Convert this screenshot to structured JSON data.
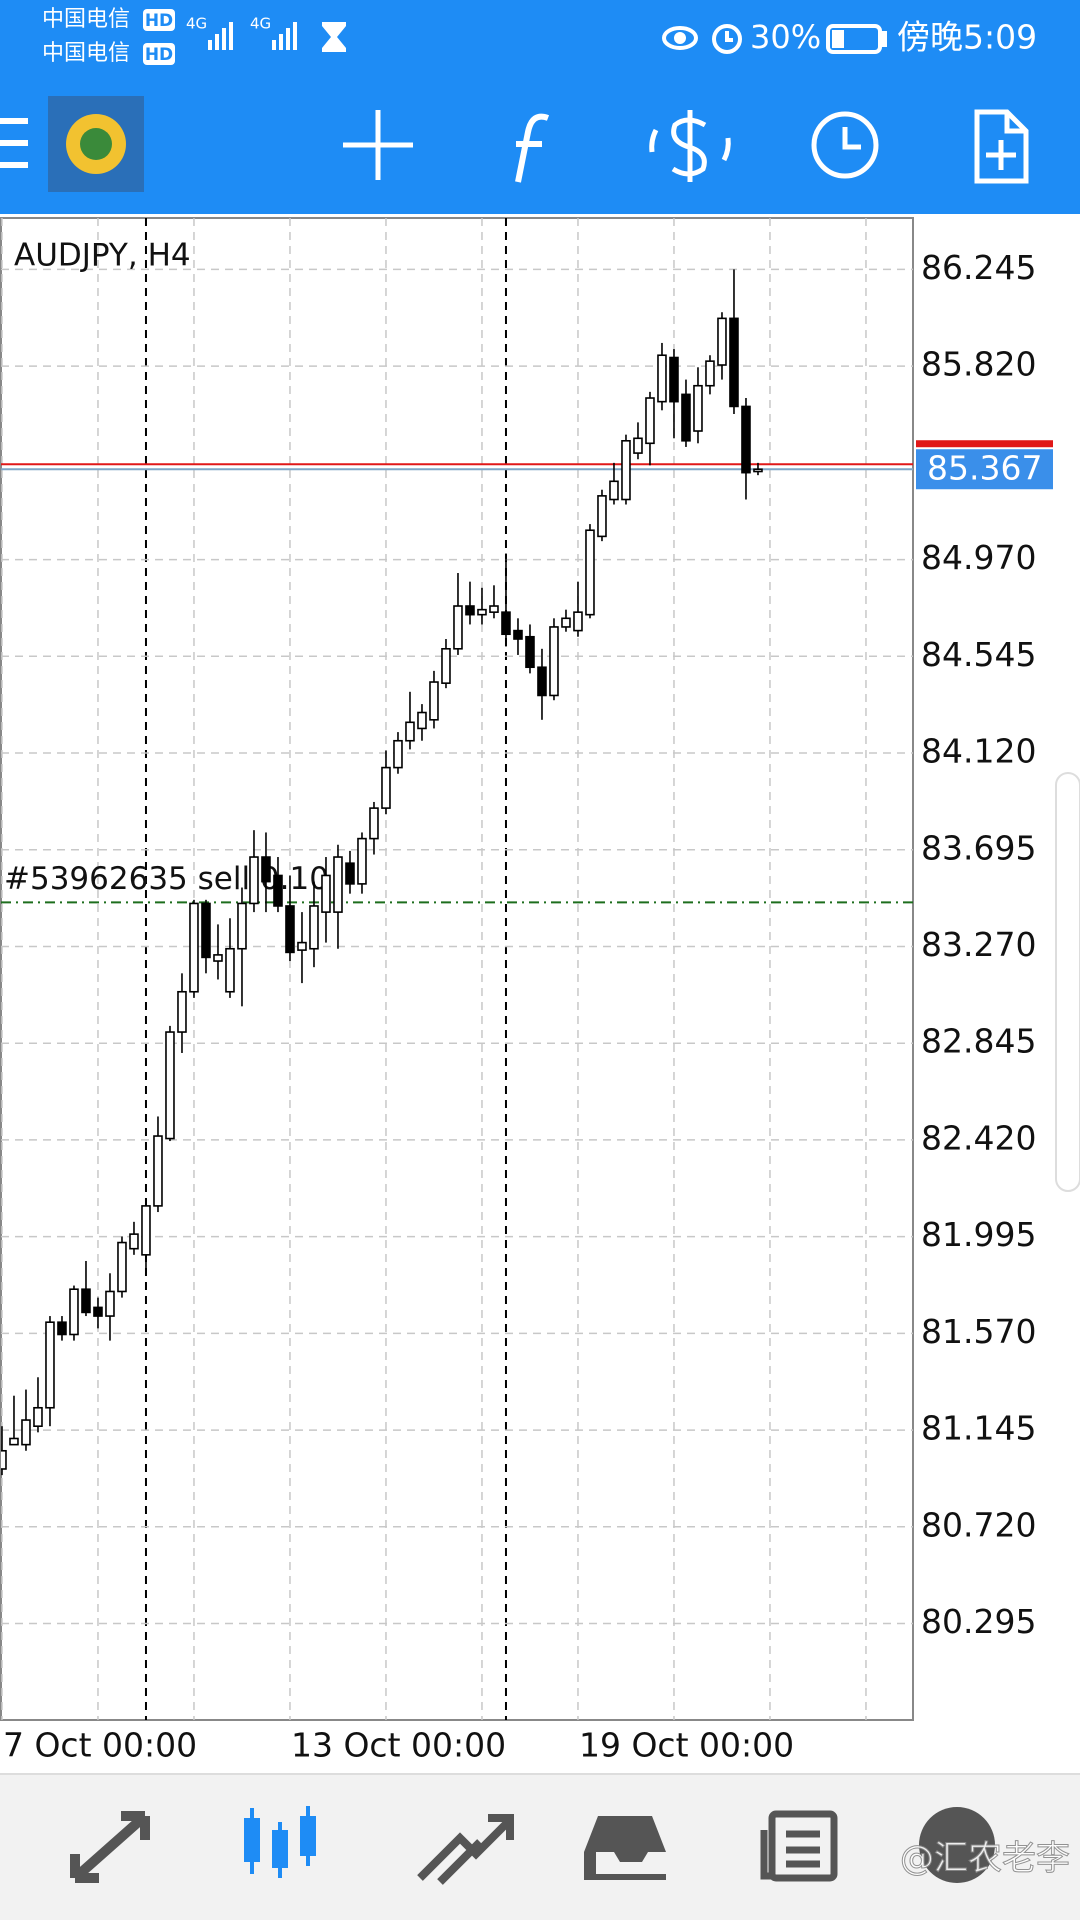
{
  "status_bar": {
    "carrier_1": "中国电信",
    "carrier_2": "中国电信",
    "hd_1": "HD",
    "hd_2": "HD",
    "net_1": "4G",
    "net_2": "4G",
    "battery": "30%",
    "time": "傍晚5:09"
  },
  "chart_data": {
    "type": "candlestick",
    "title": "AUDJPY, H4",
    "categories": [
      "7 Oct 00:00",
      null,
      null,
      null,
      null,
      null,
      null,
      null,
      null,
      null,
      null,
      null,
      null,
      null,
      null,
      null,
      null,
      null,
      null,
      null,
      null,
      null,
      null,
      null,
      "13 Oct 00:00",
      null,
      null,
      null,
      null,
      null,
      null,
      null,
      null,
      null,
      null,
      null,
      null,
      null,
      null,
      null,
      null,
      null,
      null,
      null,
      null,
      null,
      null,
      null,
      "19 Oct 00:00",
      null,
      null,
      null,
      null,
      null,
      null,
      null,
      null,
      null,
      null,
      null,
      null,
      null,
      null,
      null
    ],
    "open": [
      80.974,
      81.081,
      81.081,
      81.162,
      81.243,
      81.619,
      81.565,
      81.764,
      81.684,
      81.646,
      81.754,
      81.942,
      81.915,
      82.13,
      82.426,
      82.894,
      83.071,
      83.459,
      83.206,
      83.071,
      83.26,
      83.459,
      83.663,
      83.582,
      83.448,
      83.254,
      83.26,
      83.421,
      83.421,
      83.636,
      83.545,
      83.744,
      83.878,
      84.056,
      84.174,
      84.228,
      84.266,
      84.427,
      84.578,
      84.766,
      84.728,
      84.739,
      84.739,
      84.658,
      84.631,
      84.497,
      84.373,
      84.674,
      84.658,
      84.728,
      85.072,
      85.234,
      85.234,
      85.438,
      85.481,
      85.664,
      85.858,
      85.696,
      85.535,
      85.734,
      85.825,
      86.03,
      85.643,
      85.357
    ],
    "high": [
      81.162,
      81.296,
      81.323,
      81.377,
      81.646,
      81.646,
      81.78,
      81.888,
      81.727,
      81.834,
      81.996,
      82.06,
      82.157,
      82.523,
      82.921,
      83.152,
      83.475,
      83.475,
      83.367,
      83.394,
      83.529,
      83.781,
      83.771,
      83.663,
      83.582,
      83.421,
      83.555,
      83.663,
      83.717,
      83.69,
      83.771,
      83.905,
      84.131,
      84.212,
      84.389,
      84.335,
      84.481,
      84.621,
      84.911,
      84.873,
      84.846,
      84.857,
      84.997,
      84.712,
      84.685,
      84.578,
      84.712,
      84.75,
      84.873,
      85.126,
      85.277,
      85.395,
      85.519,
      85.573,
      85.707,
      85.922,
      85.895,
      85.761,
      85.815,
      85.868,
      86.057,
      86.245,
      85.68,
      85.395
    ],
    "low": [
      80.947,
      81.081,
      81.054,
      81.135,
      81.162,
      81.538,
      81.538,
      81.646,
      81.592,
      81.538,
      81.727,
      81.915,
      81.834,
      82.103,
      82.415,
      82.802,
      83.044,
      83.152,
      83.125,
      83.044,
      83.007,
      83.421,
      83.421,
      83.421,
      83.206,
      83.109,
      83.179,
      83.287,
      83.26,
      83.502,
      83.502,
      83.674,
      83.851,
      84.029,
      84.136,
      84.174,
      84.228,
      84.405,
      84.551,
      84.685,
      84.685,
      84.712,
      84.588,
      84.551,
      84.47,
      84.266,
      84.352,
      84.653,
      84.631,
      84.712,
      85.051,
      85.212,
      85.212,
      85.411,
      85.384,
      85.626,
      85.503,
      85.465,
      85.481,
      85.696,
      85.761,
      85.61,
      85.234,
      85.341
    ],
    "close": [
      81.054,
      81.108,
      81.189,
      81.243,
      81.619,
      81.565,
      81.764,
      81.662,
      81.646,
      81.754,
      81.969,
      82.006,
      82.13,
      82.437,
      82.894,
      83.071,
      83.459,
      83.222,
      83.233,
      83.26,
      83.459,
      83.663,
      83.555,
      83.448,
      83.244,
      83.287,
      83.448,
      83.582,
      83.663,
      83.545,
      83.744,
      83.878,
      84.056,
      84.174,
      84.255,
      84.298,
      84.432,
      84.578,
      84.766,
      84.728,
      84.75,
      84.766,
      84.642,
      84.621,
      84.497,
      84.373,
      84.674,
      84.712,
      84.739,
      85.099,
      85.25,
      85.314,
      85.492,
      85.503,
      85.68,
      85.868,
      85.664,
      85.492,
      85.734,
      85.842,
      86.03,
      85.643,
      85.352,
      85.367
    ],
    "up_color": "#ffffff",
    "down_color": "#000000",
    "ylim": [
      79.871,
      86.471
    ],
    "yticks": [
      86.245,
      {
        "value": 85.82,
        "label": "85.820"
      },
      {
        "value": 84.97,
        "label": "84.970"
      },
      84.545,
      {
        "value": 84.12,
        "label": "84.120"
      },
      83.695,
      {
        "value": 83.27,
        "label": "83.270"
      },
      82.845,
      {
        "value": 82.42,
        "label": "82.420"
      },
      81.995,
      {
        "value": 81.57,
        "label": "81.570"
      },
      81.145,
      {
        "value": 80.72,
        "label": "80.720"
      },
      80.295
    ],
    "grid": true,
    "bid": 85.367,
    "bid_color": "#7fa6c6",
    "ask": 85.389,
    "ask_color": "#e01818",
    "order": {
      "label": "#53962635 sell 0.10",
      "price": 83.464,
      "color": "#1d6e1d"
    }
  },
  "watermark": "@汇农老李"
}
